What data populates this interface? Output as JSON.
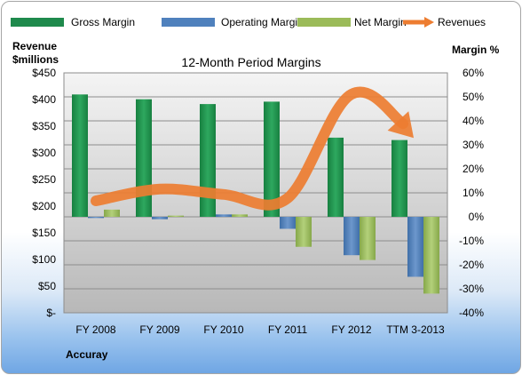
{
  "chart_data": {
    "type": "bar",
    "title": "12-Month Period Margins",
    "left_axis_label": [
      "Revenue",
      "$millions"
    ],
    "right_axis_label": "Margin %",
    "company": "Accuray",
    "categories": [
      "FY 2008",
      "FY 2009",
      "FY 2010",
      "FY 2011",
      "FY 2012",
      "TTM 3-2013"
    ],
    "y_left": {
      "min": 0,
      "max": 450,
      "step": 50,
      "tick_labels": [
        "$-",
        "$50",
        "$100",
        "$150",
        "$200",
        "$250",
        "$300",
        "$350",
        "$400",
        "$450"
      ]
    },
    "y_right": {
      "min": -40,
      "max": 60,
      "step": 10,
      "tick_labels": [
        "-40%",
        "-30%",
        "-20%",
        "-10%",
        "0%",
        "10%",
        "20%",
        "30%",
        "40%",
        "50%",
        "60%"
      ]
    },
    "series": [
      {
        "name": "Gross Margin",
        "axis": "right",
        "kind": "bar",
        "color": "#1f8a4c",
        "values": [
          51,
          49,
          47,
          48,
          33,
          32
        ]
      },
      {
        "name": "Operating Margin",
        "axis": "right",
        "kind": "bar",
        "color": "#4f81bd",
        "values": [
          -0.5,
          -1,
          1,
          -5,
          -16,
          -25
        ]
      },
      {
        "name": "Net Margin",
        "axis": "right",
        "kind": "bar",
        "color": "#9bbb59",
        "values": [
          3,
          0.5,
          1,
          -12.5,
          -18,
          -32
        ]
      },
      {
        "name": "Revenues",
        "axis": "left",
        "kind": "arrow-line",
        "color": "#ed7d31",
        "values": [
          210,
          232,
          222,
          215,
          410,
          338
        ]
      }
    ],
    "grid": true,
    "legend_position": "top"
  }
}
